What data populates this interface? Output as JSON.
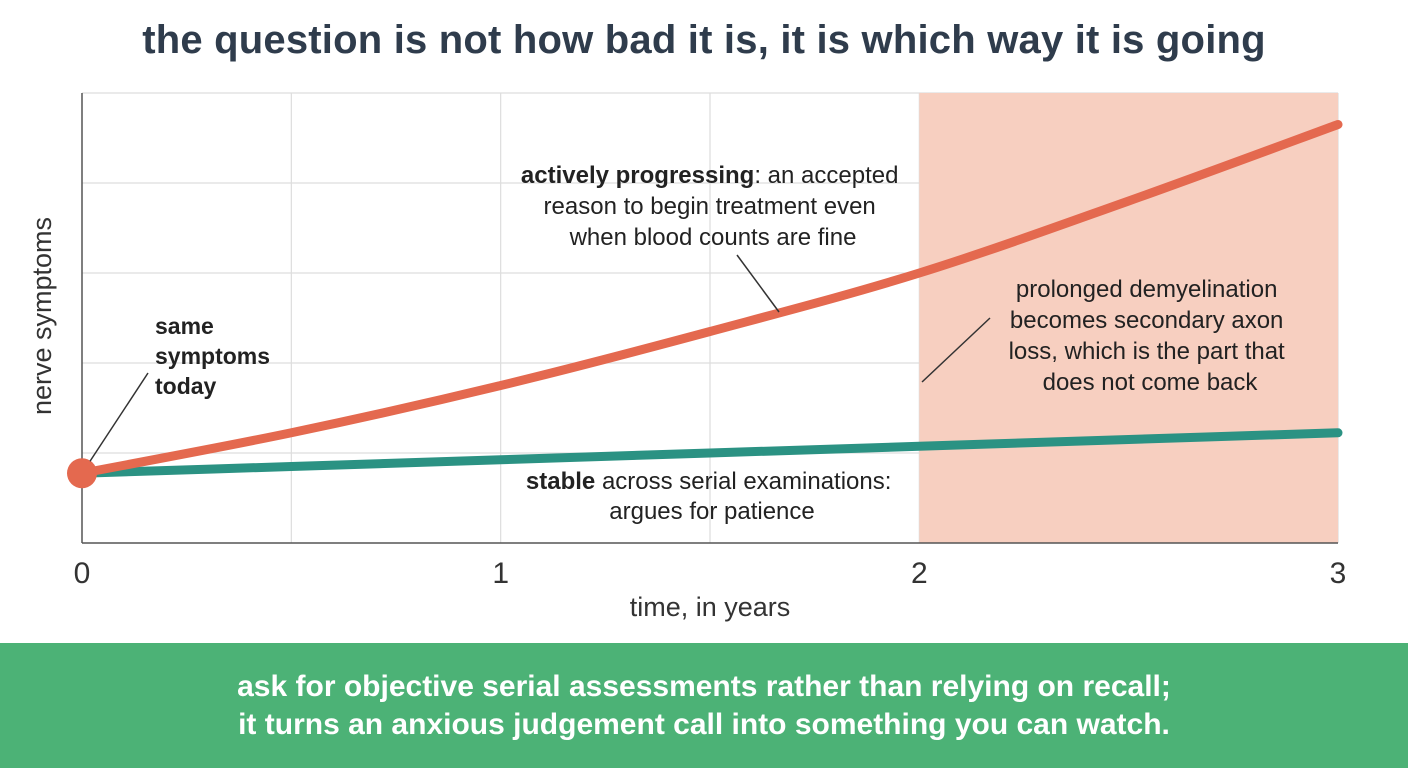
{
  "title": "the question is not how bad it is, it is which way it is going",
  "colors": {
    "progressing": "#e4694f",
    "stable": "#2b9283",
    "region_fill": "#f7cfc0",
    "grid": "#dddddd",
    "footer_bg": "#4cb276"
  },
  "chart_data": {
    "type": "line",
    "title": "the question is not how bad it is, it is which way it is going",
    "xlabel": "time, in years",
    "ylabel": "nerve symptoms",
    "x_ticks": [
      "0",
      "1",
      "2",
      "3"
    ],
    "xlim": [
      0,
      3
    ],
    "ylim": [
      0,
      10
    ],
    "grid": true,
    "series": [
      {
        "color": "#e4694f",
        "x": [
          0,
          0.5,
          1,
          1.5,
          2,
          2.5,
          3
        ],
        "y": [
          1.55,
          2.45,
          3.5,
          4.7,
          6.0,
          7.6,
          9.3
        ]
      },
      {
        "color": "#2b9283",
        "x": [
          0,
          0.5,
          1,
          1.5,
          2,
          2.5,
          3
        ],
        "y": [
          1.55,
          1.7,
          1.85,
          2.0,
          2.15,
          2.3,
          2.45
        ]
      }
    ],
    "shaded_region": {
      "x_start": 2,
      "x_end": 3
    },
    "start_marker": {
      "x": 0,
      "y": 1.55
    },
    "annotations": {
      "start": [
        "same",
        "symptoms",
        "today"
      ],
      "progressing": {
        "bold": "actively progressing",
        "lines": [
          ": an accepted",
          "reason to begin treatment even",
          "when blood counts are fine"
        ]
      },
      "stable": {
        "bold": "stable",
        "lines": [
          " across serial examinations:",
          "argues for patience"
        ]
      },
      "region": [
        "prolonged demyelination",
        "becomes secondary axon",
        "loss, which is the part that",
        "does not come back"
      ]
    }
  },
  "footer": {
    "line1": "ask for objective serial assessments rather than relying on recall;",
    "line2": "it turns an anxious judgement call into something you can watch."
  }
}
